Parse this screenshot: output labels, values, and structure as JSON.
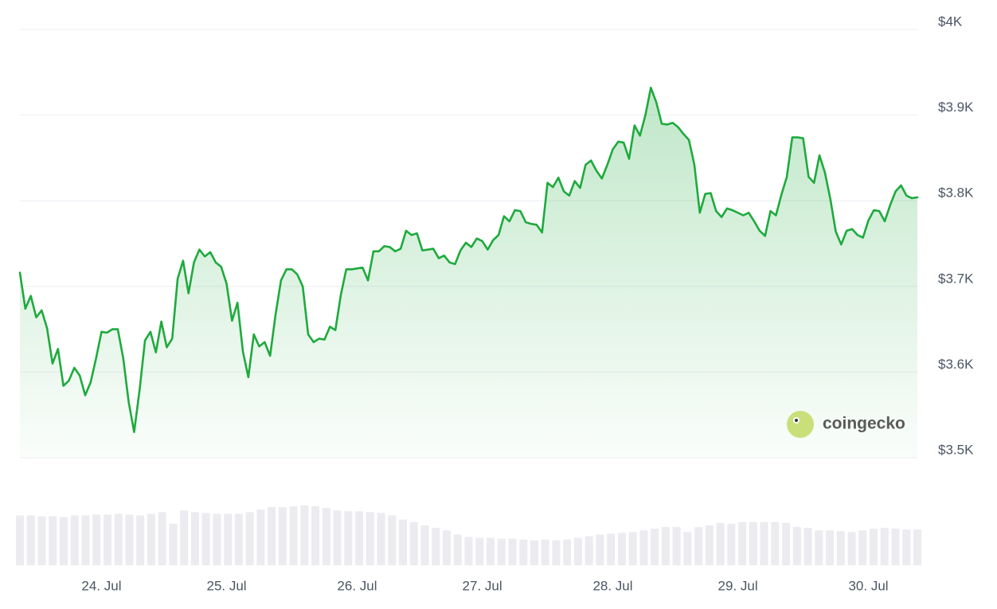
{
  "chart_data": {
    "type": "line",
    "categories": [
      null,
      null,
      null,
      null,
      null,
      null,
      null,
      null,
      null,
      null,
      null,
      null,
      null,
      null,
      null,
      "24. Jul",
      null,
      null,
      null,
      null,
      null,
      null,
      null,
      null,
      null,
      null,
      null,
      null,
      null,
      null,
      null,
      null,
      null,
      null,
      null,
      null,
      null,
      null,
      "25. Jul",
      null,
      null,
      null,
      null,
      null,
      null,
      null,
      null,
      null,
      null,
      null,
      null,
      null,
      null,
      null,
      null,
      null,
      null,
      null,
      null,
      null,
      null,
      null,
      "26. Jul",
      null,
      null,
      null,
      null,
      null,
      null,
      null,
      null,
      null,
      null,
      null,
      null,
      null,
      null,
      null,
      null,
      null,
      null,
      null,
      null,
      null,
      null,
      "27. Jul",
      null,
      null,
      null,
      null,
      null,
      null,
      null,
      null,
      null,
      null,
      null,
      null,
      null,
      null,
      null,
      null,
      null,
      null,
      null,
      null,
      null,
      null,
      null,
      "28. Jul",
      null,
      null,
      null,
      null,
      null,
      null,
      null,
      null,
      null,
      null,
      null,
      null,
      null,
      null,
      null,
      null,
      null,
      null,
      null,
      null,
      null,
      null,
      "29. Jul",
      null,
      null,
      null,
      null,
      null,
      null,
      null,
      null,
      null,
      null,
      null,
      null,
      null,
      null,
      null,
      null,
      null,
      null,
      null,
      null,
      null,
      null,
      null,
      "30. Jul",
      null,
      null,
      null,
      null,
      null,
      null,
      null,
      null,
      null
    ],
    "series": [
      {
        "color": "#1eaa3d",
        "values": [
          3716,
          3674,
          3689,
          3664,
          3672,
          3651,
          3610,
          3627,
          3584,
          3590,
          3605,
          3596,
          3573,
          3588,
          3616,
          3647,
          3646,
          3650,
          3650,
          3616,
          3565,
          3530,
          3579,
          3637,
          3647,
          3623,
          3659,
          3629,
          3639,
          3709,
          3730,
          3692,
          3728,
          3743,
          3735,
          3740,
          3728,
          3723,
          3703,
          3660,
          3681,
          3624,
          3594,
          3644,
          3630,
          3635,
          3619,
          3667,
          3707,
          3720,
          3720,
          3714,
          3700,
          3644,
          3635,
          3639,
          3638,
          3653,
          3649,
          3690,
          3720,
          3720,
          3721,
          3722,
          3707,
          3741,
          3741,
          3747,
          3746,
          3741,
          3744,
          3765,
          3760,
          3762,
          3742,
          3743,
          3744,
          3733,
          3736,
          3728,
          3726,
          3742,
          3751,
          3746,
          3756,
          3753,
          3743,
          3754,
          3760,
          3782,
          3776,
          3789,
          3788,
          3775,
          3773,
          3772,
          3763,
          3821,
          3816,
          3827,
          3811,
          3806,
          3823,
          3815,
          3842,
          3847,
          3835,
          3826,
          3842,
          3860,
          3869,
          3868,
          3849,
          3888,
          3876,
          3900,
          3932,
          3915,
          3890,
          3889,
          3891,
          3886,
          3878,
          3871,
          3842,
          3786,
          3808,
          3809,
          3788,
          3781,
          3791,
          3789,
          3786,
          3783,
          3786,
          3776,
          3765,
          3759,
          3788,
          3783,
          3807,
          3828,
          3874,
          3874,
          3873,
          3828,
          3821,
          3853,
          3833,
          3802,
          3764,
          3749,
          3765,
          3767,
          3760,
          3757,
          3777,
          3789,
          3788,
          3776,
          3795,
          3811,
          3818,
          3806,
          3803,
          3804
        ]
      }
    ],
    "ylim": [
      3500,
      4000
    ],
    "yticks": [
      {
        "value": 3500,
        "label": "$3.5K"
      },
      {
        "value": 3600,
        "label": "$3.6K"
      },
      {
        "value": 3700,
        "label": "$3.7K"
      },
      {
        "value": 3800,
        "label": "$3.8K"
      },
      {
        "value": 3900,
        "label": "$3.9K"
      },
      {
        "value": 4000,
        "label": "$4K"
      }
    ],
    "grid": true,
    "volume": {
      "color": "#ebebf0",
      "values": [
        60,
        60,
        59,
        59,
        58,
        60,
        60,
        61,
        61,
        62,
        61,
        60,
        62,
        64,
        50,
        66,
        64,
        63,
        62,
        62,
        62,
        64,
        67,
        70,
        70,
        71,
        72,
        71,
        69,
        66,
        65,
        65,
        64,
        63,
        60,
        55,
        52,
        48,
        45,
        42,
        37,
        34,
        33,
        33,
        32,
        32,
        31,
        30,
        31,
        30,
        31,
        33,
        35,
        37,
        38,
        39,
        40,
        42,
        44,
        46,
        46,
        40,
        46,
        48,
        51,
        50,
        52,
        52,
        52,
        52,
        51,
        46,
        45,
        42,
        42,
        41,
        40,
        42,
        44,
        45,
        44,
        43,
        43
      ]
    },
    "watermark": "coingecko"
  }
}
